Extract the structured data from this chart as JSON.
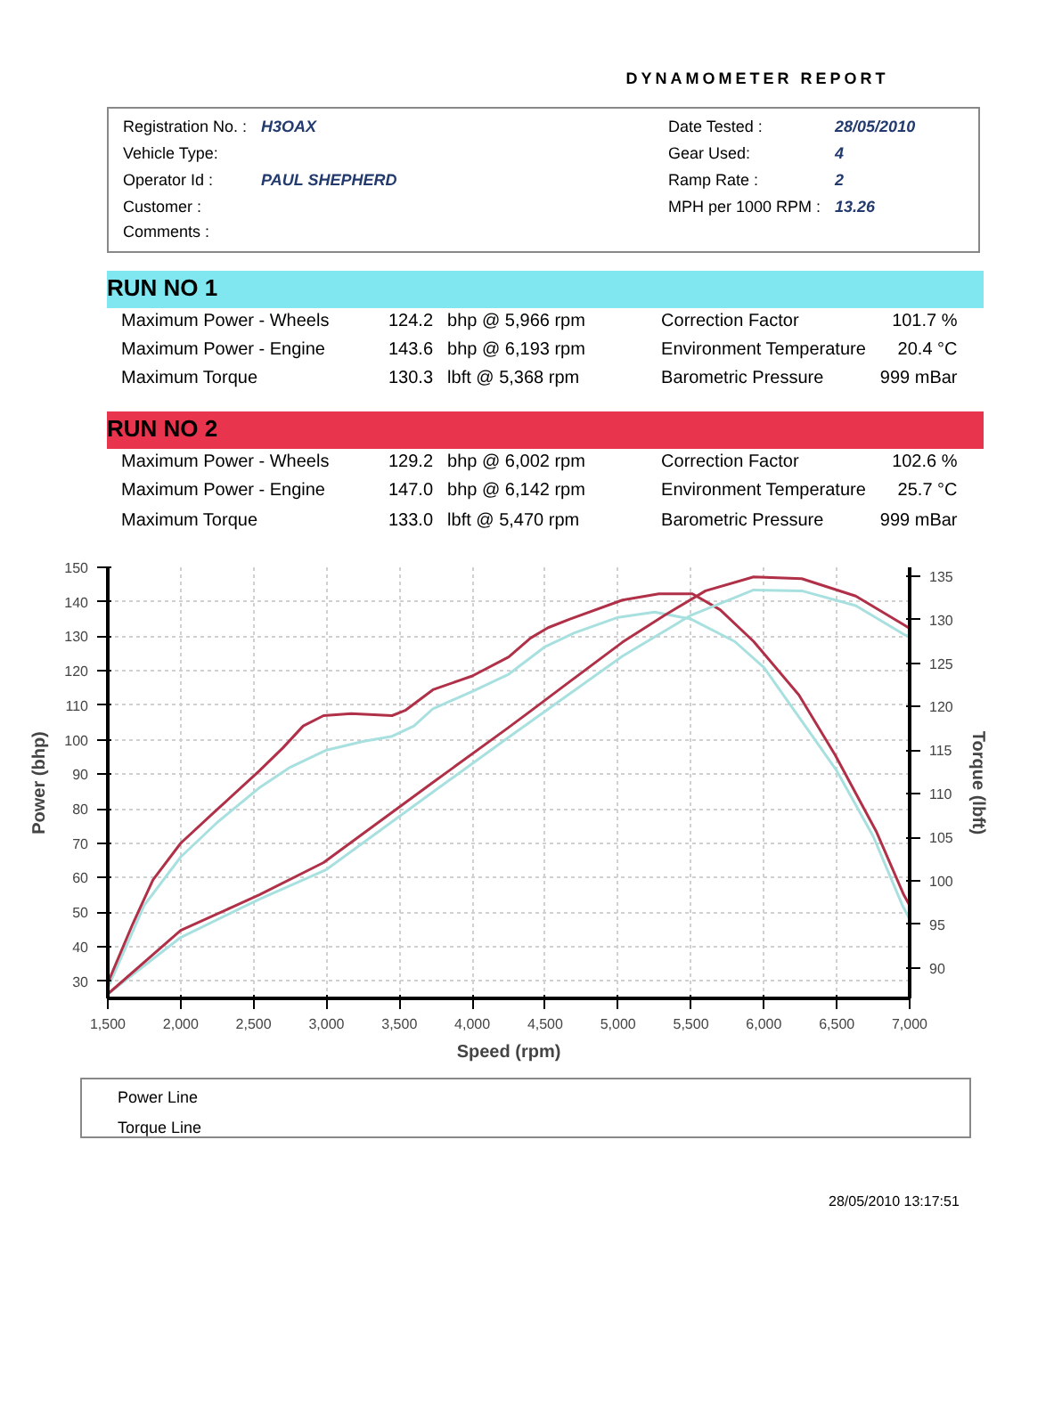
{
  "chart_data": {
    "type": "line",
    "title": "DYNAMOMETER REPORT",
    "xlabel": "Speed (rpm)",
    "ylabel": "Power (bhp)",
    "y2label": "Torque (lbft)",
    "xlim": [
      1500,
      7000
    ],
    "ylim": [
      25,
      150
    ],
    "y2lim": [
      86.5,
      136
    ],
    "xticks": [
      {
        "value": 1500,
        "label": "1,500"
      },
      {
        "value": 2000,
        "label": "2,000"
      },
      {
        "value": 2500,
        "label": "2,500"
      },
      {
        "value": 3000,
        "label": "3,000"
      },
      {
        "value": 3500,
        "label": "3,500"
      },
      {
        "value": 4000,
        "label": "4,000"
      },
      {
        "value": 4500,
        "label": "4,500"
      },
      {
        "value": 5000,
        "label": "5,000"
      },
      {
        "value": 5500,
        "label": "5,500"
      },
      {
        "value": 6000,
        "label": "6,000"
      },
      {
        "value": 6500,
        "label": "6,500"
      },
      {
        "value": 7000,
        "label": "7,000"
      }
    ],
    "yticks": [
      30,
      40,
      50,
      60,
      70,
      80,
      90,
      100,
      110,
      120,
      130,
      140,
      150
    ],
    "y2ticks": [
      90,
      95,
      100,
      105,
      110,
      115,
      120,
      125,
      130,
      135
    ],
    "grid": true,
    "series": [
      {
        "color": "#a8e0e0",
        "x": [
          1500,
          1750,
          2000,
          2250,
          2537,
          2750,
          3000,
          3250,
          3450,
          3600,
          3730,
          4000,
          4250,
          4500,
          4700,
          5000,
          5250,
          5500,
          5800,
          6000,
          6150,
          6300,
          6500,
          6750,
          6950,
          7000
        ],
        "values": [
          28,
          52,
          66,
          76,
          86,
          92,
          97,
          99.5,
          101,
          104,
          109,
          114,
          119,
          127,
          131,
          135.5,
          137,
          135,
          128.5,
          121,
          112,
          103,
          91,
          72,
          52,
          48
        ]
      },
      {
        "color": "#b03048",
        "x": [
          1500,
          1670,
          1810,
          2000,
          2230,
          2540,
          2700,
          2840,
          2980,
          3170,
          3450,
          3540,
          3730,
          4000,
          4250,
          4400,
          4520,
          4670,
          5030,
          5280,
          5510,
          5700,
          5930,
          6240,
          6490,
          6770,
          6960,
          7000
        ],
        "values": [
          29.5,
          46.5,
          59.4,
          70,
          79,
          91,
          97.6,
          104,
          107,
          107.6,
          107,
          108.5,
          114.5,
          118.5,
          124,
          129.5,
          132.5,
          135,
          140.5,
          142.3,
          142.3,
          137.7,
          128.5,
          113,
          95.5,
          73.5,
          55,
          52
        ]
      },
      {
        "color": "#a8e0e0",
        "axis": "y2",
        "x": [
          1500,
          2000,
          2540,
          3000,
          3730,
          4250,
          4670,
          5030,
          5500,
          5930,
          6260,
          6630,
          6960,
          7000
        ],
        "values": [
          87,
          93.5,
          97.9,
          101.3,
          110.2,
          116.5,
          121.5,
          125.8,
          130.5,
          133.4,
          133.3,
          131.6,
          128.3,
          128
        ]
      },
      {
        "color": "#b03048",
        "axis": "y2",
        "x": [
          1500,
          2000,
          2540,
          2980,
          3730,
          4240,
          4400,
          4670,
          5030,
          5320,
          5600,
          5930,
          6260,
          6630,
          6960,
          7000
        ],
        "values": [
          87,
          94.3,
          98.4,
          102.1,
          111.3,
          117.5,
          119.5,
          122.9,
          127.4,
          130.5,
          133.3,
          134.9,
          134.7,
          132.7,
          129.4,
          129
        ]
      }
    ],
    "annotations": [
      "Registration No. :",
      "H3OAX",
      "Vehicle Type:",
      "Operator Id :",
      "PAUL SHEPHERD",
      "Customer :",
      "Comments :",
      "Date Tested :",
      "28/05/2010",
      "Gear Used:",
      "4",
      "Ramp Rate :",
      "2",
      "MPH per 1000 RPM :",
      "13.26",
      "RUN NO 1",
      "Maximum Power - Wheels",
      "124.2",
      "bhp @ 5,966 rpm",
      "Correction Factor",
      "101.7 %",
      "Maximum Power - Engine",
      "143.6",
      "bhp @ 6,193 rpm",
      "Environment Temperature",
      "20.4 °C",
      "Maximum Torque",
      "130.3",
      "lbft @ 5,368 rpm",
      "Barometric Pressure",
      "999 mBar",
      "RUN NO 2",
      "Maximum Power - Wheels",
      "129.2",
      "bhp @ 6,002 rpm",
      "Correction Factor",
      "102.6 %",
      "Maximum Power - Engine",
      "147.0",
      "bhp @ 6,142 rpm",
      "Environment Temperature",
      "25.7 °C",
      "Maximum Torque",
      "133.0",
      "lbft @ 5,470 rpm",
      "Barometric Pressure",
      "999 mBar",
      "Power Line",
      "Torque Line",
      "28/05/2010 13:17:51"
    ]
  }
}
